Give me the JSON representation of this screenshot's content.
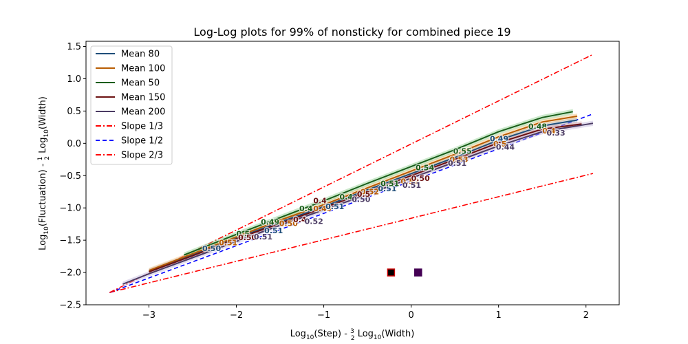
{
  "chart_data": {
    "type": "line",
    "title": "Log-Log plots for 99% of nonsticky for combined piece 19",
    "xlabel": {
      "pre": "Log",
      "sub1": "10",
      "mid": "(Step) - ",
      "frac_num": "3",
      "frac_den": "2",
      "post": " Log",
      "sub2": "10",
      "end": "(Width)"
    },
    "ylabel": {
      "pre": "Log",
      "sub1": "10",
      "mid": "(Fluctuation) - ",
      "frac_num": "1",
      "frac_den": "2",
      "post": " Log",
      "sub2": "10",
      "end": "(Width)"
    },
    "xlim": [
      -3.72,
      2.38
    ],
    "ylim": [
      -2.5,
      1.58
    ],
    "xticks": [
      -3,
      -2,
      -1,
      0,
      1,
      2
    ],
    "yticks": [
      -2.5,
      -2.0,
      -1.5,
      -1.0,
      -0.5,
      0.0,
      0.5,
      1.0,
      1.5
    ],
    "xtick_labels": [
      "−3",
      "−2",
      "−1",
      "0",
      "1",
      "2"
    ],
    "ytick_labels": [
      "−2.5",
      "−2.0",
      "−1.5",
      "−1.0",
      "−0.5",
      "0.0",
      "0.5",
      "1.0",
      "1.5"
    ],
    "legend_position": "upper-left",
    "series": [
      {
        "name": "Mean 80",
        "color": "#1f4e79",
        "band": "#9fb8d4",
        "points": [
          [
            -3.0,
            -1.98
          ],
          [
            -2.5,
            -1.73
          ],
          [
            -2.0,
            -1.47
          ],
          [
            -1.5,
            -1.22
          ],
          [
            -1.0,
            -0.98
          ],
          [
            -0.5,
            -0.72
          ],
          [
            0.0,
            -0.47
          ],
          [
            0.5,
            -0.22
          ],
          [
            1.0,
            0.05
          ],
          [
            1.5,
            0.27
          ],
          [
            1.9,
            0.36
          ]
        ]
      },
      {
        "name": "Mean 100",
        "color": "#b85c00",
        "band": "#f5c07a",
        "points": [
          [
            -3.0,
            -1.97
          ],
          [
            -2.5,
            -1.71
          ],
          [
            -2.0,
            -1.45
          ],
          [
            -1.5,
            -1.19
          ],
          [
            -1.0,
            -0.95
          ],
          [
            -0.5,
            -0.69
          ],
          [
            0.0,
            -0.43
          ],
          [
            0.5,
            -0.17
          ],
          [
            1.0,
            0.1
          ],
          [
            1.5,
            0.33
          ],
          [
            1.9,
            0.42
          ]
        ]
      },
      {
        "name": "Mean 50",
        "color": "#1a5e1a",
        "band": "#8fcf8f",
        "points": [
          [
            -2.6,
            -1.73
          ],
          [
            -2.0,
            -1.41
          ],
          [
            -1.5,
            -1.15
          ],
          [
            -1.0,
            -0.89
          ],
          [
            -0.5,
            -0.62
          ],
          [
            0.0,
            -0.36
          ],
          [
            0.5,
            -0.1
          ],
          [
            1.0,
            0.18
          ],
          [
            1.5,
            0.4
          ],
          [
            1.85,
            0.49
          ]
        ]
      },
      {
        "name": "Mean 150",
        "color": "#6b1010",
        "band": "#d9a0a0",
        "points": [
          [
            -3.0,
            -1.99
          ],
          [
            -2.5,
            -1.74
          ],
          [
            -2.0,
            -1.48
          ],
          [
            -1.5,
            -1.24
          ],
          [
            -1.0,
            -1.0
          ],
          [
            -0.5,
            -0.75
          ],
          [
            0.0,
            -0.5
          ],
          [
            0.5,
            -0.25
          ],
          [
            1.0,
            0.01
          ],
          [
            1.5,
            0.22
          ],
          [
            1.95,
            0.3
          ]
        ]
      },
      {
        "name": "Mean 200",
        "color": "#4b3b63",
        "band": "#c2b5dc",
        "points": [
          [
            -3.3,
            -2.18
          ],
          [
            -3.0,
            -2.02
          ],
          [
            -2.5,
            -1.77
          ],
          [
            -2.0,
            -1.52
          ],
          [
            -1.5,
            -1.27
          ],
          [
            -1.0,
            -1.03
          ],
          [
            -0.5,
            -0.79
          ],
          [
            0.0,
            -0.54
          ],
          [
            0.5,
            -0.29
          ],
          [
            1.0,
            -0.04
          ],
          [
            1.5,
            0.18
          ],
          [
            2.08,
            0.31
          ]
        ]
      }
    ],
    "reference_lines": [
      {
        "name": "Slope 1/3",
        "slope": 0.3333,
        "color": "#ff0000",
        "dash": "8,3,2,3",
        "x": [
          -3.45,
          2.08
        ]
      },
      {
        "name": "Slope 1/2",
        "slope": 0.5,
        "color": "#0000ff",
        "dash": "6,4",
        "x": [
          -3.45,
          2.08
        ]
      },
      {
        "name": "Slope 2/3",
        "slope": 0.6667,
        "color": "#ff0000",
        "dash": "8,3,2,3",
        "x": [
          -3.45,
          2.08
        ]
      }
    ],
    "reference_origin": [
      -3.45,
      -2.31
    ],
    "annotations": [
      {
        "text": "0.50",
        "x": -2.39,
        "y": -1.67,
        "color": "#1f4e79"
      },
      {
        "text": "0.51",
        "x": -2.2,
        "y": -1.58,
        "color": "#b85c00"
      },
      {
        "text": "0.5",
        "x": -2.0,
        "y": -1.44,
        "color": "#1a5e1a"
      },
      {
        "text": "0.50",
        "x": -1.98,
        "y": -1.5,
        "color": "#6b1010"
      },
      {
        "text": "0.51",
        "x": -1.8,
        "y": -1.49,
        "color": "#4b3b63"
      },
      {
        "text": "0.51",
        "x": -1.68,
        "y": -1.39,
        "color": "#1f4e79"
      },
      {
        "text": "0.49",
        "x": -1.72,
        "y": -1.26,
        "color": "#1a5e1a"
      },
      {
        "text": "0.50",
        "x": -1.51,
        "y": -1.28,
        "color": "#b85c00"
      },
      {
        "text": "0.4",
        "x": -1.35,
        "y": -1.22,
        "color": "#6b1010"
      },
      {
        "text": "0.52",
        "x": -1.22,
        "y": -1.25,
        "color": "#4b3b63"
      },
      {
        "text": "0.4",
        "x": -1.28,
        "y": -1.05,
        "color": "#1a5e1a"
      },
      {
        "text": "0.49",
        "x": -1.12,
        "y": -1.05,
        "color": "#b85c00"
      },
      {
        "text": "0.51",
        "x": -0.98,
        "y": -1.02,
        "color": "#1f4e79"
      },
      {
        "text": "0.4",
        "x": -1.12,
        "y": -0.93,
        "color": "#6b1010"
      },
      {
        "text": "0.4",
        "x": -0.82,
        "y": -0.87,
        "color": "#1a5e1a"
      },
      {
        "text": "0.52",
        "x": -0.58,
        "y": -0.79,
        "color": "#b85c00"
      },
      {
        "text": "0.50",
        "x": -0.68,
        "y": -0.91,
        "color": "#4b3b63"
      },
      {
        "text": "0.5",
        "x": -0.62,
        "y": -0.83,
        "color": "#6b1010"
      },
      {
        "text": "0.51",
        "x": -0.38,
        "y": -0.74,
        "color": "#1f4e79"
      },
      {
        "text": "0.51",
        "x": -0.35,
        "y": -0.66,
        "color": "#1a5e1a"
      },
      {
        "text": "0.52",
        "x": -0.12,
        "y": -0.63,
        "color": "#b85c00"
      },
      {
        "text": "0.51",
        "x": -0.1,
        "y": -0.69,
        "color": "#4b3b63"
      },
      {
        "text": "0.50",
        "x": 0.0,
        "y": -0.58,
        "color": "#6b1010"
      },
      {
        "text": "0.54",
        "x": 0.05,
        "y": -0.42,
        "color": "#1a5e1a"
      },
      {
        "text": "0.55",
        "x": 0.48,
        "y": -0.16,
        "color": "#1a5e1a"
      },
      {
        "text": "0.53",
        "x": 0.44,
        "y": -0.29,
        "color": "#b85c00"
      },
      {
        "text": "0.51",
        "x": 0.42,
        "y": -0.35,
        "color": "#4b3b63"
      },
      {
        "text": "0.49",
        "x": 0.9,
        "y": 0.03,
        "color": "#1f4e79"
      },
      {
        "text": "0.5",
        "x": 0.94,
        "y": -0.05,
        "color": "#b85c00"
      },
      {
        "text": "0.44",
        "x": 0.97,
        "y": -0.1,
        "color": "#4b3b63"
      },
      {
        "text": "0.48",
        "x": 1.34,
        "y": 0.22,
        "color": "#1a5e1a"
      },
      {
        "text": "0.4",
        "x": 1.5,
        "y": 0.15,
        "color": "#b85c00"
      },
      {
        "text": "0.33",
        "x": 1.55,
        "y": 0.12,
        "color": "#4b3b63"
      }
    ],
    "markers": [
      {
        "x": -0.23,
        "y": -2.0,
        "fill": "#000000",
        "stroke": "#cc0000"
      },
      {
        "x": 0.08,
        "y": -2.0,
        "fill": "#440154",
        "stroke": "#440154"
      }
    ]
  }
}
